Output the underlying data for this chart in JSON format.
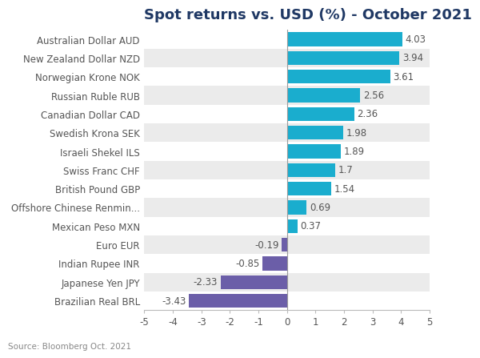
{
  "title": "Spot returns vs. USD (%) - October 2021",
  "source": "Source: Bloomberg Oct. 2021",
  "categories": [
    "Brazilian Real BRL",
    "Japanese Yen JPY",
    "Indian Rupee INR",
    "Euro EUR",
    "Mexican Peso MXN",
    "Offshore Chinese Renmin...",
    "British Pound GBP",
    "Swiss Franc CHF",
    "Israeli Shekel ILS",
    "Swedish Krona SEK",
    "Canadian Dollar CAD",
    "Russian Ruble RUB",
    "Norwegian Krone NOK",
    "New Zealand Dollar NZD",
    "Australian Dollar AUD"
  ],
  "values": [
    -3.43,
    -2.33,
    -0.85,
    -0.19,
    0.37,
    0.69,
    1.54,
    1.7,
    1.89,
    1.98,
    2.36,
    2.56,
    3.61,
    3.94,
    4.03
  ],
  "bar_color_positive": "#1AADCE",
  "bar_color_negative": "#6B5EA8",
  "background_color": "#FFFFFF",
  "row_color_odd": "#EBEBEB",
  "row_color_even": "#FFFFFF",
  "title_color": "#1F3864",
  "label_color": "#555555",
  "value_color": "#555555",
  "xlim": [
    -5,
    5
  ],
  "xticks": [
    -5,
    -4,
    -3,
    -2,
    -1,
    0,
    1,
    2,
    3,
    4,
    5
  ],
  "title_fontsize": 13,
  "label_fontsize": 8.5,
  "value_fontsize": 8.5,
  "source_fontsize": 7.5
}
